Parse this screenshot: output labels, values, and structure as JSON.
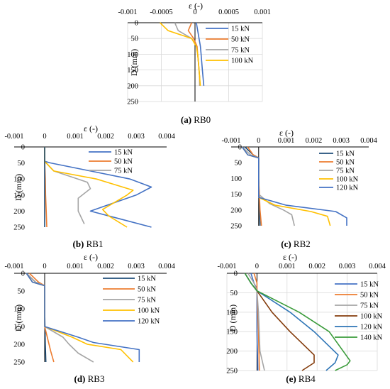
{
  "chart_data": [
    {
      "id": "RB0",
      "type": "line",
      "caption_letter": "(a)",
      "caption_name": "RB0",
      "xlabel": "ε (-)",
      "ylabel": "D (mm)",
      "xlim": [
        -0.001,
        0.001
      ],
      "ylim": [
        0,
        250
      ],
      "x_ticks": [
        -0.001,
        -0.0005,
        0,
        0.0005,
        0.001
      ],
      "x_tick_labels": [
        "-0.001",
        "-0.0005",
        "0",
        "0.0005",
        "0.001"
      ],
      "y_ticks": [
        0,
        50,
        100,
        150,
        200,
        250
      ],
      "y_tick_labels": [
        "0",
        "50",
        "100",
        "150",
        "200",
        "250"
      ],
      "y_inverted": true,
      "grid": true,
      "legend_position": "right",
      "series": [
        {
          "name": "15 kN",
          "color": "#4472c4",
          "x": [
            2e-05,
            4e-05,
            6e-05,
            8e-05,
            9e-05,
            0.0001,
            0.00011,
            0.00012,
            0.00013
          ],
          "y": [
            0,
            25,
            50,
            75,
            100,
            125,
            150,
            175,
            200
          ]
        },
        {
          "name": "50 kN",
          "color": "#ed7d31",
          "x": [
            -5e-05,
            -0.0001,
            -2e-05,
            3e-05,
            4e-05,
            5e-05,
            6e-05,
            7e-05,
            7e-05
          ],
          "y": [
            0,
            25,
            50,
            75,
            100,
            125,
            150,
            175,
            200
          ]
        },
        {
          "name": "75 kN",
          "color": "#a5a5a5",
          "x": [
            -0.0003,
            -0.00025,
            -5e-05,
            2e-05,
            4e-05,
            5e-05,
            6e-05,
            7e-05,
            7e-05
          ],
          "y": [
            0,
            25,
            50,
            75,
            100,
            125,
            150,
            175,
            200
          ]
        },
        {
          "name": "100 kN",
          "color": "#ffc000",
          "x": [
            -0.00052,
            -0.0004,
            -5e-05,
            2e-05,
            4e-05,
            5e-05,
            6e-05,
            7e-05,
            8e-05
          ],
          "y": [
            0,
            25,
            50,
            75,
            100,
            125,
            150,
            175,
            200
          ]
        }
      ]
    },
    {
      "id": "RB1",
      "type": "line",
      "caption_letter": "(b)",
      "caption_name": "RB1",
      "xlabel": "ε (-)",
      "ylabel": "D (mm)",
      "xlim": [
        -0.001,
        0.004
      ],
      "ylim": [
        0,
        250
      ],
      "x_ticks": [
        -0.001,
        0,
        0.001,
        0.002,
        0.003,
        0.004
      ],
      "x_tick_labels": [
        "-0.001",
        "0",
        "0.001",
        "0.002",
        "0.003",
        "0.004"
      ],
      "y_ticks": [
        0,
        50,
        100,
        150,
        200,
        250
      ],
      "y_tick_labels": [
        "0",
        "50",
        "100",
        "150",
        "200",
        "250"
      ],
      "y_inverted": true,
      "grid": false,
      "legend_position": "top-right",
      "series": [
        {
          "name": "15 kN",
          "color": "#4472c4",
          "x": [
            0,
            0,
            0.0002,
            0.0015,
            0.0028,
            0.0035,
            0.003,
            0.0015,
            0.0025,
            0.0035
          ],
          "y": [
            0,
            45,
            50,
            75,
            100,
            125,
            150,
            200,
            225,
            250
          ]
        },
        {
          "name": "50 kN",
          "color": "#ed7d31",
          "x": [
            0,
            0,
            2e-05,
            3e-05,
            5e-05,
            7e-05
          ],
          "y": [
            0,
            45,
            100,
            150,
            200,
            250
          ]
        },
        {
          "name": "75 kN",
          "color": "#a5a5a5",
          "x": [
            0,
            0,
            0.0003,
            0.0014,
            0.0015,
            0.0011,
            0.0011,
            0.0013
          ],
          "y": [
            0,
            45,
            75,
            110,
            130,
            160,
            200,
            240
          ]
        },
        {
          "name": "",
          "color": "#ffc000",
          "x": [
            0,
            0,
            0.0003,
            0.0017,
            0.0029,
            0.0027,
            0.0019,
            0.0021,
            0.0027
          ],
          "y": [
            0,
            45,
            75,
            100,
            135,
            150,
            195,
            215,
            250
          ]
        },
        {
          "name": "",
          "color": "#1f4e79",
          "x": [
            0,
            0,
            0,
            0
          ],
          "y": [
            0,
            100,
            200,
            250
          ]
        }
      ]
    },
    {
      "id": "RB2",
      "type": "line",
      "caption_letter": "(c)",
      "caption_name": "RB2",
      "xlabel": "ε (-)",
      "ylabel": "",
      "xlim": [
        -0.001,
        0.004
      ],
      "ylim": [
        0,
        250
      ],
      "x_ticks": [
        -0.001,
        0,
        0.001,
        0.002,
        0.003,
        0.004
      ],
      "x_tick_labels": [
        "-0.001",
        "0",
        "0.001",
        "0.002",
        "0.003",
        "0.004"
      ],
      "y_ticks": [
        0,
        50,
        100,
        150,
        200,
        250
      ],
      "y_tick_labels": [
        "0",
        "50",
        "100",
        "150",
        "200",
        "250"
      ],
      "y_inverted": true,
      "grid": false,
      "legend_position": "top-right",
      "series": [
        {
          "name": "15 kN",
          "color": "#1f4e79",
          "x": [
            -0.0005,
            -0.0002,
            0,
            0,
            3e-05,
            5e-05
          ],
          "y": [
            0,
            25,
            35,
            100,
            200,
            250
          ]
        },
        {
          "name": "50 kN",
          "color": "#ed7d31",
          "x": [
            -0.0004,
            -0.0002,
            0,
            0,
            5e-05,
            0.0001
          ],
          "y": [
            0,
            25,
            35,
            100,
            200,
            250
          ]
        },
        {
          "name": "75 kN",
          "color": "#a5a5a5",
          "x": [
            -0.0006,
            -0.0003,
            0,
            0,
            0.0004,
            0.0009,
            0.0012,
            0.0013
          ],
          "y": [
            0,
            25,
            35,
            150,
            180,
            200,
            215,
            250
          ]
        },
        {
          "name": "100 kN",
          "color": "#ffc000",
          "x": [
            -0.0006,
            -0.0004,
            0,
            0,
            0.0006,
            0.0019,
            0.0025,
            0.0026
          ],
          "y": [
            0,
            25,
            35,
            160,
            185,
            205,
            220,
            250
          ]
        },
        {
          "name": "120 kN",
          "color": "#4472c4",
          "x": [
            -0.0006,
            -0.0004,
            0,
            0,
            0.001,
            0.0028,
            0.0032,
            0.0032
          ],
          "y": [
            0,
            25,
            35,
            160,
            185,
            205,
            225,
            250
          ]
        }
      ]
    },
    {
      "id": "RB3",
      "type": "line",
      "caption_letter": "(d)",
      "caption_name": "RB3",
      "xlabel": "ε (-)",
      "ylabel": "D (mm)",
      "xlim": [
        -0.001,
        0.004
      ],
      "ylim": [
        0,
        250
      ],
      "x_ticks": [
        -0.001,
        0,
        0.001,
        0.002,
        0.003,
        0.004
      ],
      "x_tick_labels": [
        "-0.001",
        "0",
        "0.001",
        "0.002",
        "0.003",
        "0.004"
      ],
      "y_ticks": [
        0,
        50,
        100,
        150,
        200,
        250
      ],
      "y_tick_labels": [
        "0",
        "50",
        "100",
        "150",
        "200",
        "250"
      ],
      "y_inverted": true,
      "grid": false,
      "legend_position": "top-right",
      "series": [
        {
          "name": "15 kN",
          "color": "#1f4e79",
          "x": [
            -0.0006,
            -0.0003,
            0,
            0,
            2e-05,
            4e-05
          ],
          "y": [
            0,
            25,
            35,
            100,
            200,
            250
          ]
        },
        {
          "name": "50 kN",
          "color": "#ed7d31",
          "x": [
            -0.0005,
            -0.0002,
            0,
            0,
            0.0002,
            0.0003
          ],
          "y": [
            0,
            25,
            35,
            150,
            220,
            250
          ]
        },
        {
          "name": "75 kN",
          "color": "#a5a5a5",
          "x": [
            -0.0006,
            -0.0003,
            0,
            0,
            0.0006,
            0.0008,
            0.0011,
            0.0016
          ],
          "y": [
            0,
            25,
            35,
            150,
            180,
            200,
            225,
            250
          ]
        },
        {
          "name": "100 kN",
          "color": "#ffc000",
          "x": [
            -0.0006,
            -0.0004,
            0,
            0,
            0.0009,
            0.0014,
            0.0025,
            0.0029
          ],
          "y": [
            0,
            25,
            35,
            150,
            180,
            200,
            215,
            250
          ]
        },
        {
          "name": "120 kN",
          "color": "#4472c4",
          "x": [
            -0.0006,
            -0.0004,
            0,
            0,
            0.0011,
            0.0016,
            0.0031,
            0.0031
          ],
          "y": [
            0,
            25,
            35,
            150,
            180,
            195,
            215,
            250
          ]
        }
      ]
    },
    {
      "id": "RB4",
      "type": "line",
      "caption_letter": "(e)",
      "caption_name": "RB4",
      "xlabel": "ε (-)",
      "ylabel": "D (mm)",
      "xlim": [
        -0.001,
        0.004
      ],
      "ylim": [
        0,
        250
      ],
      "x_ticks": [
        -0.001,
        0,
        0.001,
        0.002,
        0.003,
        0.004
      ],
      "x_tick_labels": [
        "-0.001",
        "0",
        "0.001",
        "0.002",
        "0.003",
        "0.004"
      ],
      "y_ticks": [
        0,
        50,
        100,
        150,
        200,
        250
      ],
      "y_tick_labels": [
        "0",
        "50",
        "100",
        "150",
        "200",
        "250"
      ],
      "y_inverted": true,
      "grid": true,
      "legend_position": "top-right",
      "series": [
        {
          "name": "15 kN",
          "color": "#4472c4",
          "x": [
            -0.0002,
            -0.0001,
            0,
            0,
            3e-05
          ],
          "y": [
            0,
            25,
            40,
            150,
            250
          ]
        },
        {
          "name": "50 kN",
          "color": "#ed7d31",
          "x": [
            -0.0001,
            0,
            0,
            5e-05,
            8e-05
          ],
          "y": [
            0,
            25,
            40,
            150,
            250
          ]
        },
        {
          "name": "75 kN",
          "color": "#a5a5a5",
          "x": [
            -0.0003,
            -0.0001,
            0,
            5e-05,
            0.0001,
            0.00025
          ],
          "y": [
            0,
            25,
            45,
            100,
            200,
            250
          ]
        },
        {
          "name": "100 kN",
          "color": "#843c0c",
          "x": [
            -0.0004,
            -0.0002,
            0,
            0.0005,
            0.0011,
            0.0019,
            0.0019,
            0.0015
          ],
          "y": [
            0,
            25,
            45,
            100,
            150,
            210,
            230,
            250
          ]
        },
        {
          "name": "120 kN",
          "color": "#2e75b6",
          "x": [
            -0.0004,
            -0.0002,
            0,
            0.0011,
            0.0019,
            0.0027,
            0.0026,
            0.0023
          ],
          "y": [
            0,
            25,
            45,
            100,
            150,
            210,
            230,
            250
          ]
        },
        {
          "name": "140 kN",
          "color": "#3a9b3a",
          "x": [
            -0.0004,
            -0.0002,
            0,
            0.0014,
            0.0024,
            0.0031,
            0.003,
            0.0026
          ],
          "y": [
            0,
            25,
            45,
            100,
            150,
            225,
            235,
            250
          ]
        }
      ]
    }
  ]
}
